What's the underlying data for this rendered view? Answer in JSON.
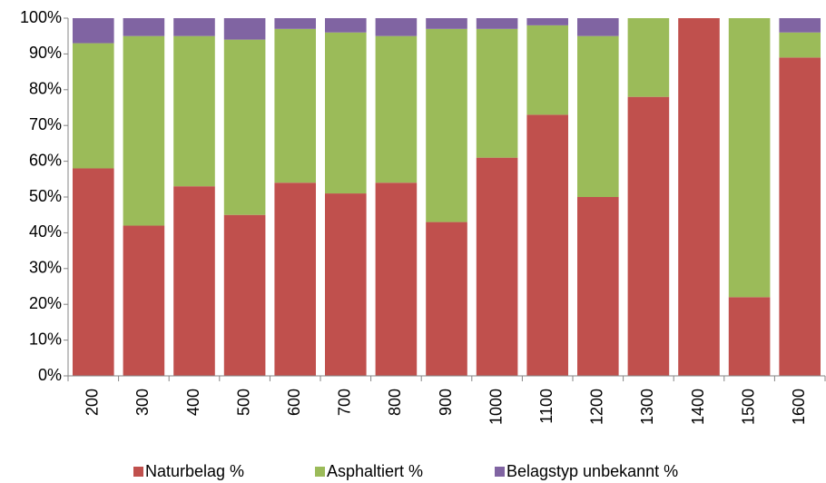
{
  "chart_data": {
    "type": "bar",
    "stacked": true,
    "categories": [
      "200",
      "300",
      "400",
      "500",
      "600",
      "700",
      "800",
      "900",
      "1000",
      "1100",
      "1200",
      "1300",
      "1400",
      "1500",
      "1600"
    ],
    "series": [
      {
        "name": "Naturbelag %",
        "color": "#c0504d",
        "values": [
          58,
          42,
          53,
          45,
          54,
          51,
          54,
          43,
          61,
          73,
          50,
          78,
          100,
          22,
          89
        ]
      },
      {
        "name": "Asphaltiert %",
        "color": "#9bbb59",
        "values": [
          35,
          53,
          42,
          49,
          43,
          45,
          41,
          54,
          36,
          25,
          45,
          22,
          0,
          78,
          7
        ]
      },
      {
        "name": "Belagstyp unbekannt %",
        "color": "#8064a2",
        "values": [
          7,
          5,
          5,
          6,
          3,
          4,
          5,
          3,
          3,
          2,
          5,
          0,
          0,
          0,
          4
        ]
      }
    ],
    "ylim": [
      0,
      100
    ],
    "yticks": [
      {
        "value": 0,
        "label": "0%"
      },
      {
        "value": 10,
        "label": "10%"
      },
      {
        "value": 20,
        "label": "20%"
      },
      {
        "value": 30,
        "label": "30%"
      },
      {
        "value": 40,
        "label": "40%"
      },
      {
        "value": 50,
        "label": "50%"
      },
      {
        "value": 60,
        "label": "60%"
      },
      {
        "value": 70,
        "label": "70%"
      },
      {
        "value": 80,
        "label": "80%"
      },
      {
        "value": 90,
        "label": "90%"
      },
      {
        "value": 100,
        "label": "100%"
      }
    ],
    "legend": "bottom"
  }
}
